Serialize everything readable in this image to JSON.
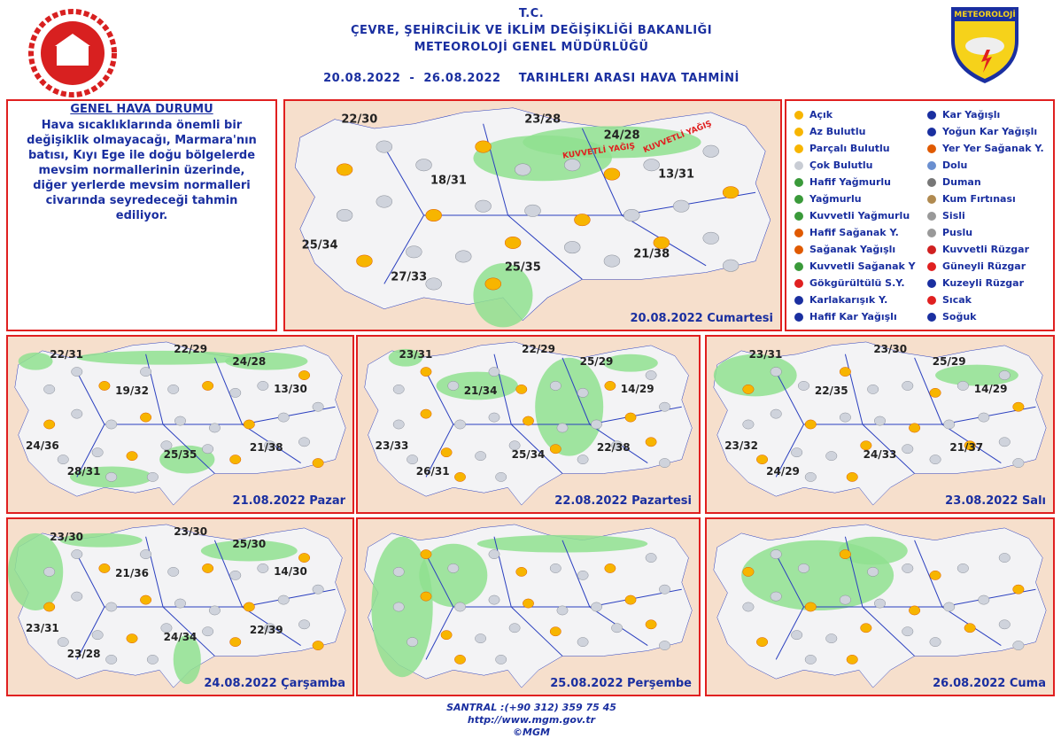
{
  "header": {
    "line1": "T.C.",
    "line2": "ÇEVRE, ŞEHİRCİLİK VE İKLİM DEĞİŞİKLİĞİ BAKANLIĞI",
    "line3": "METEOROLOJİ GENEL MÜDÜRLÜĞÜ",
    "period": "20.08.2022  -  26.08.2022    TARIHLERI ARASI HAVA TAHMİNİ",
    "logo_text": "METEOROLOJİ"
  },
  "general": {
    "title": "GENEL HAVA DURUMU",
    "text": "Hava sıcaklıklarında önemli bir değişiklik olmayacağı, Marmara'nın batısı, Kıyı Ege ile doğu bölgelerde mevsim normallerinin üzerinde, diğer yerlerde mevsim normalleri civarında seyredeceği tahmin ediliyor."
  },
  "maps": [
    {
      "date": "20.08.2022 Cumartesi",
      "temps": [
        "22/30",
        "23/28",
        "24/28",
        "18/31",
        "13/31",
        "25/34",
        "27/33",
        "25/35",
        "21/38"
      ],
      "notes": [
        "KUVVETLİ YAĞIŞ",
        "KUVVETLİ YAĞIŞ"
      ]
    },
    {
      "date": "21.08.2022 Pazar",
      "temps": [
        "22/31",
        "22/29",
        "24/28",
        "19/32",
        "13/30",
        "24/36",
        "28/31",
        "25/35",
        "21/38"
      ]
    },
    {
      "date": "22.08.2022 Pazartesi",
      "temps": [
        "23/31",
        "22/29",
        "25/29",
        "21/34",
        "14/29",
        "23/33",
        "26/31",
        "25/34",
        "22/38"
      ]
    },
    {
      "date": "23.08.2022 Salı",
      "temps": [
        "23/31",
        "23/30",
        "25/29",
        "22/35",
        "14/29",
        "23/32",
        "24/29",
        "24/33",
        "21/37"
      ]
    },
    {
      "date": "24.08.2022 Çarşamba",
      "temps": [
        "23/30",
        "23/30",
        "25/30",
        "21/36",
        "14/30",
        "23/31",
        "23/28",
        "24/34",
        "22/39"
      ]
    },
    {
      "date": "25.08.2022 Perşembe"
    },
    {
      "date": "26.08.2022 Cuma"
    }
  ],
  "legend": [
    "Açık",
    "Az Bulutlu",
    "Parçalı Bulutlu",
    "Çok Bulutlu",
    "Hafif Yağmurlu",
    "Yağmurlu",
    "Kuvvetli Yağmurlu",
    "Hafif Sağanak Y.",
    "Sağanak Yağışlı",
    "Kuvvetli Sağanak Y",
    "Gökgürültülü S.Y.",
    "Karlakarışık Y.",
    "Hafif Kar Yağışlı",
    "Kar Yağışlı",
    "Yoğun Kar Yağışlı",
    "Yer Yer Sağanak Y.",
    "Dolu",
    "Duman",
    "Kum Fırtınası",
    "Sisli",
    "Puslu",
    "Kuvvetli Rüzgar",
    "Güneyli Rüzgar",
    "Kuzeyli Rüzgar",
    "Sıcak",
    "Soğuk"
  ],
  "footer": {
    "phone": "SANTRAL :(+90 312) 359 75 45",
    "url": "http://www.mgm.gov.tr",
    "copyright": "©MGM"
  }
}
